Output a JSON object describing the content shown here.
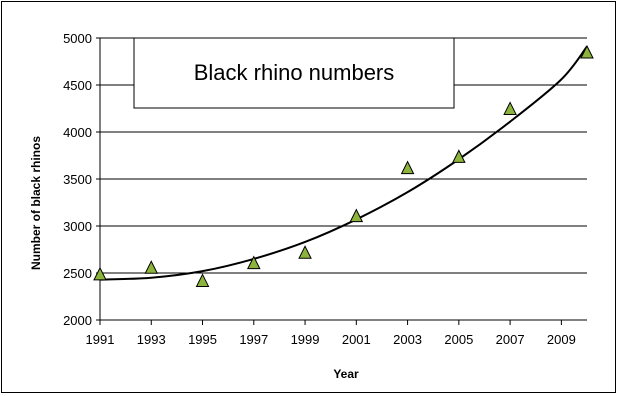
{
  "chart_data": {
    "type": "scatter",
    "title": "Black rhino numbers",
    "xlabel": "Year",
    "ylabel": "Number of black rhinos",
    "xlim": [
      1991,
      2010
    ],
    "ylim": [
      2000,
      5000
    ],
    "x_ticks": [
      1991,
      1993,
      1995,
      1997,
      1999,
      2001,
      2003,
      2005,
      2007,
      2009
    ],
    "y_ticks": [
      2000,
      2500,
      3000,
      3500,
      4000,
      4500,
      5000
    ],
    "grid": "horizontal",
    "series": [
      {
        "marker": "triangle",
        "color": "#8CB43C",
        "points": [
          {
            "x": 1991,
            "y": 2480
          },
          {
            "x": 1993,
            "y": 2550
          },
          {
            "x": 1995,
            "y": 2410
          },
          {
            "x": 1997,
            "y": 2600
          },
          {
            "x": 1999,
            "y": 2710
          },
          {
            "x": 2001,
            "y": 3100
          },
          {
            "x": 2003,
            "y": 3610
          },
          {
            "x": 2005,
            "y": 3730
          },
          {
            "x": 2007,
            "y": 4240
          },
          {
            "x": 2010,
            "y": 4840
          }
        ]
      }
    ],
    "trendline": {
      "type": "polynomial",
      "color": "#000000",
      "points": [
        {
          "x": 1991,
          "y": 2430
        },
        {
          "x": 1993,
          "y": 2450
        },
        {
          "x": 1995,
          "y": 2520
        },
        {
          "x": 1997,
          "y": 2650
        },
        {
          "x": 1999,
          "y": 2830
        },
        {
          "x": 2001,
          "y": 3070
        },
        {
          "x": 2003,
          "y": 3360
        },
        {
          "x": 2005,
          "y": 3710
        },
        {
          "x": 2007,
          "y": 4110
        },
        {
          "x": 2009,
          "y": 4560
        },
        {
          "x": 2010,
          "y": 4910
        }
      ]
    }
  }
}
